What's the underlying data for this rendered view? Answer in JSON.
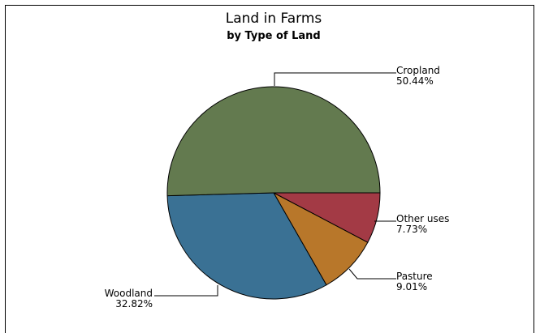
{
  "chart_data": {
    "type": "pie",
    "title": "Land in Farms",
    "subtitle": "by Type of Land",
    "slices": [
      {
        "label": "Cropland",
        "value": 50.44,
        "display": "50.44%",
        "color": "#637a4f"
      },
      {
        "label": "Other uses",
        "value": 7.73,
        "display": "7.73%",
        "color": "#a33a45"
      },
      {
        "label": "Pasture",
        "value": 9.01,
        "display": "9.01%",
        "color": "#b8772a"
      },
      {
        "label": "Woodland",
        "value": 32.82,
        "display": "32.82%",
        "color": "#3a7194"
      }
    ],
    "legend": "none"
  }
}
